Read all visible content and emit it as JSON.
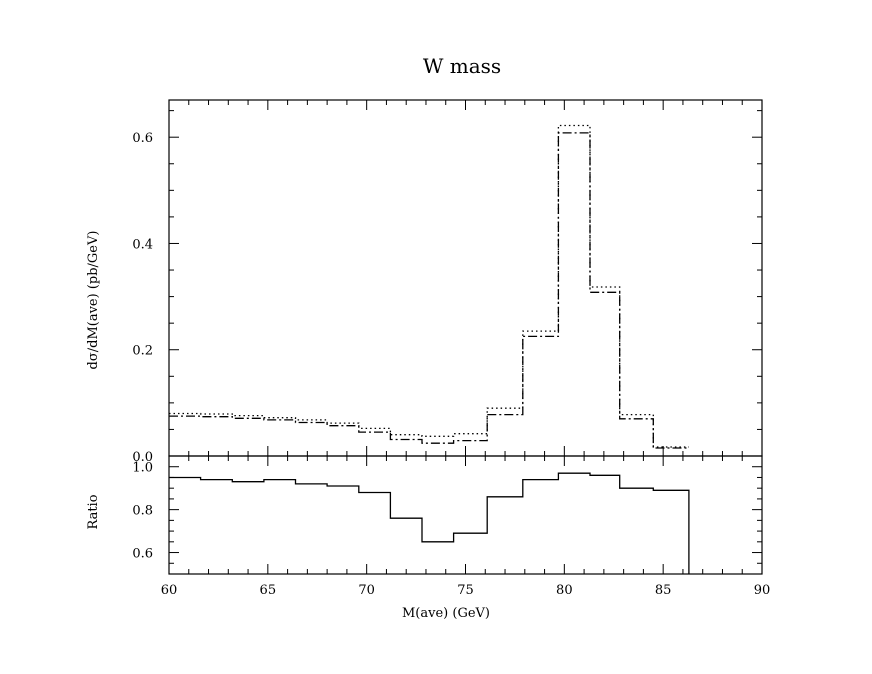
{
  "chart_data": [
    {
      "type": "line",
      "title": "W mass",
      "ylabel": "dσ/dM(ave)  (pb/GeV)",
      "xlim": [
        60,
        90
      ],
      "ylim": [
        0,
        0.67
      ],
      "x_ticks": [
        60,
        65,
        70,
        75,
        80,
        85,
        90
      ],
      "y_ticks": [
        "0.0",
        "0.2",
        "0.4",
        "0.6"
      ],
      "bin_edges": [
        60,
        61.6,
        63.2,
        64.8,
        66.4,
        68.0,
        69.6,
        71.2,
        72.8,
        74.4,
        76.1,
        77.9,
        79.7,
        81.3,
        82.8,
        84.5,
        86.3
      ],
      "series": [
        {
          "style": "dotted",
          "values": [
            0.08,
            0.079,
            0.076,
            0.072,
            0.068,
            0.062,
            0.052,
            0.04,
            0.037,
            0.042,
            0.09,
            0.235,
            0.622,
            0.318,
            0.078,
            0.017
          ]
        },
        {
          "style": "dash-dot",
          "values": [
            0.075,
            0.074,
            0.071,
            0.068,
            0.063,
            0.057,
            0.045,
            0.031,
            0.024,
            0.029,
            0.078,
            0.225,
            0.608,
            0.308,
            0.07,
            0.015
          ]
        }
      ],
      "grid": false
    },
    {
      "type": "line",
      "ylabel": "Ratio",
      "xlabel": "M(ave)  (GeV)",
      "xlim": [
        60,
        90
      ],
      "ylim": [
        0.5,
        1.05
      ],
      "x_ticks": [
        "60",
        "65",
        "70",
        "75",
        "80",
        "85",
        "90"
      ],
      "y_ticks": [
        "0.6",
        "0.8",
        "1.0"
      ],
      "bin_edges": [
        60,
        61.6,
        63.2,
        64.8,
        66.4,
        68.0,
        69.6,
        71.2,
        72.8,
        74.4,
        76.1,
        77.9,
        79.7,
        81.3,
        82.8,
        84.5,
        86.3
      ],
      "values": [
        0.95,
        0.94,
        0.93,
        0.94,
        0.92,
        0.91,
        0.88,
        0.76,
        0.65,
        0.69,
        0.86,
        0.94,
        0.97,
        0.96,
        0.9,
        0.89
      ],
      "grid": false
    }
  ]
}
